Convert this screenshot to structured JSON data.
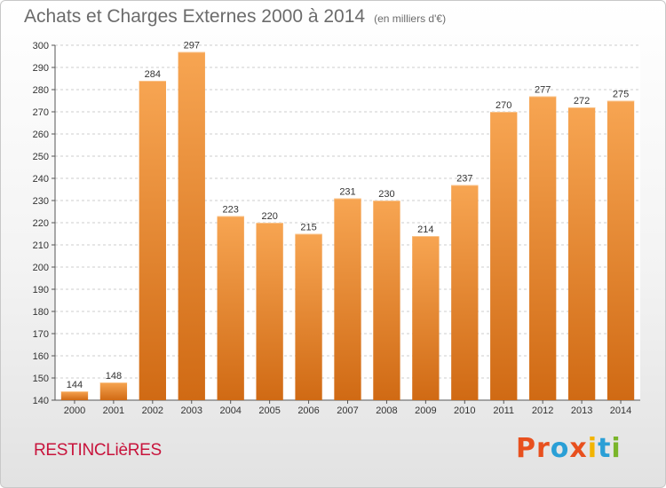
{
  "title": "Achats et Charges Externes 2000 à 2014",
  "subtitle": "(en milliers d'€)",
  "commune": "RESTINCLièRES",
  "logo": {
    "text": "Proxiti",
    "colors": [
      "#e8501e",
      "#e8501e",
      "#2a9fd6",
      "#e8501e",
      "#f3b400",
      "#2a9fd6",
      "#7ab52a"
    ]
  },
  "colors": {
    "bar_top": "#f7a552",
    "bar_bottom": "#d06a14",
    "grid": "#cccccc",
    "title": "#6b6b6b",
    "commune": "#c8143c"
  },
  "chart_data": {
    "type": "bar",
    "categories": [
      "2000",
      "2001",
      "2002",
      "2003",
      "2004",
      "2005",
      "2006",
      "2007",
      "2008",
      "2009",
      "2010",
      "2011",
      "2012",
      "2013",
      "2014"
    ],
    "values": [
      144,
      148,
      284,
      297,
      223,
      220,
      215,
      231,
      230,
      214,
      237,
      270,
      277,
      272,
      275
    ],
    "ylim": [
      140,
      300
    ],
    "yticks": [
      140,
      150,
      160,
      170,
      180,
      190,
      200,
      210,
      220,
      230,
      240,
      250,
      260,
      270,
      280,
      290,
      300
    ],
    "grid": true,
    "xlabel": "",
    "ylabel": ""
  }
}
